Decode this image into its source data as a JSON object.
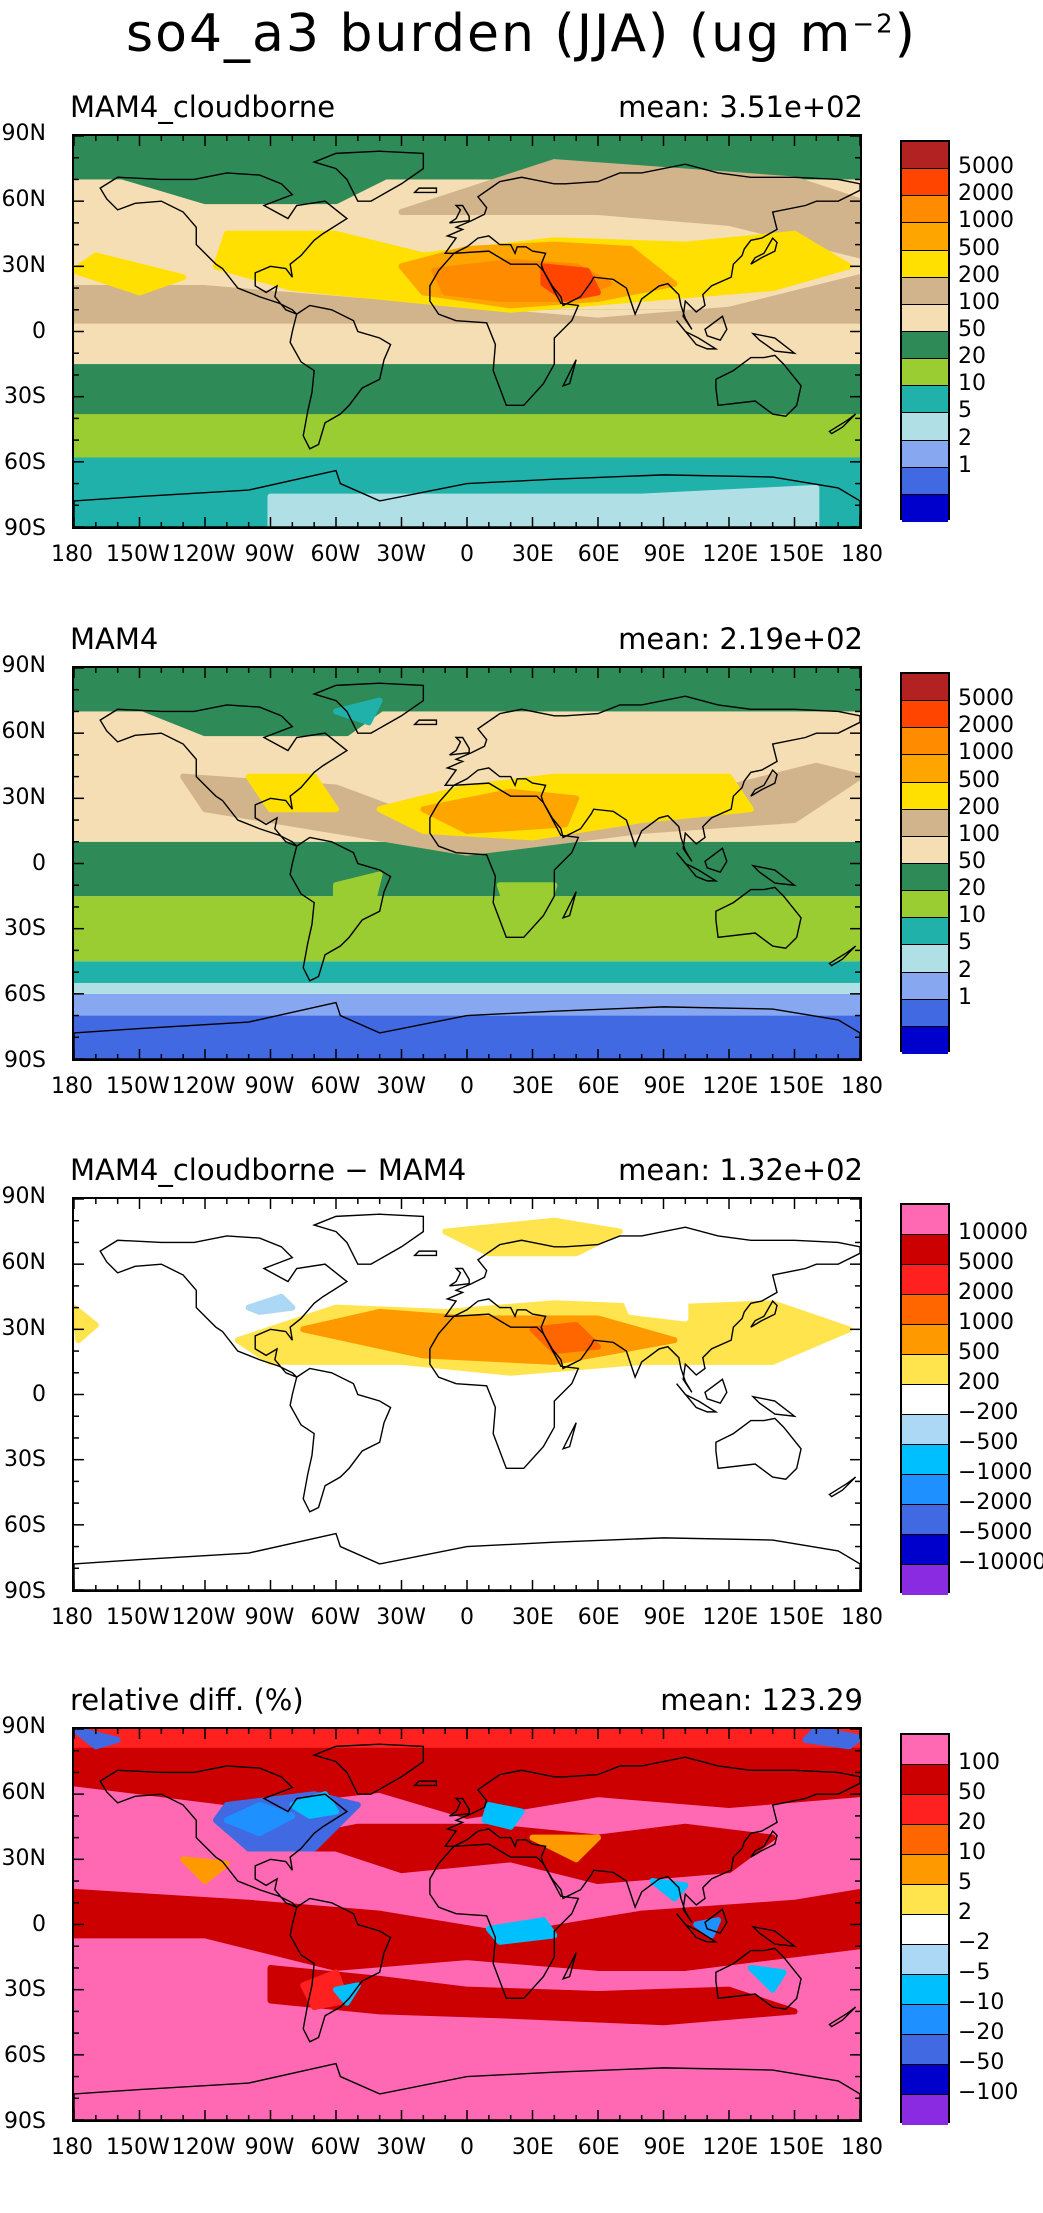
{
  "title": {
    "text": "so4_a3 burden (JJA) (ug m",
    "exp": "−2",
    "close": ")"
  },
  "axes": {
    "lat_labels": [
      "90N",
      "60N",
      "30N",
      "0",
      "30S",
      "60S",
      "90S"
    ],
    "lon_labels": [
      "180",
      "150W",
      "120W",
      "90W",
      "60W",
      "30W",
      "0",
      "30E",
      "60E",
      "90E",
      "120E",
      "150E",
      "180"
    ]
  },
  "panels": [
    {
      "name": "MAM4_cloudborne",
      "mean": "mean: 3.51e+02",
      "colorbar": {
        "labels": [
          "5000",
          "2000",
          "1000",
          "500",
          "200",
          "100",
          "50",
          "20",
          "10",
          "5",
          "2",
          "1"
        ],
        "colors": [
          "#b22222",
          "#ff4500",
          "#ff8c00",
          "#ffa500",
          "#ffe000",
          "#d2b48c",
          "#f5deb3",
          "#2e8b57",
          "#9acd32",
          "#20b2aa",
          "#b0e0e6",
          "#87a8f0",
          "#4169e1",
          "#0000cd"
        ]
      },
      "field": "p1"
    },
    {
      "name": "MAM4",
      "mean": "mean: 2.19e+02",
      "colorbar": {
        "labels": [
          "5000",
          "2000",
          "1000",
          "500",
          "200",
          "100",
          "50",
          "20",
          "10",
          "5",
          "2",
          "1"
        ],
        "colors": [
          "#b22222",
          "#ff4500",
          "#ff8c00",
          "#ffa500",
          "#ffe000",
          "#d2b48c",
          "#f5deb3",
          "#2e8b57",
          "#9acd32",
          "#20b2aa",
          "#b0e0e6",
          "#87a8f0",
          "#4169e1",
          "#0000cd"
        ]
      },
      "field": "p2"
    },
    {
      "name": "MAM4_cloudborne − MAM4",
      "mean": "mean: 1.32e+02",
      "colorbar": {
        "labels": [
          "10000",
          "5000",
          "2000",
          "1000",
          "500",
          "200",
          "−200",
          "−500",
          "−1000",
          "−2000",
          "−5000",
          "−10000"
        ],
        "colors": [
          "#ff69b4",
          "#cc0000",
          "#ff2020",
          "#ff6600",
          "#ff9900",
          "#ffe44d",
          "#ffffff",
          "#add8f5",
          "#00bfff",
          "#1e90ff",
          "#4169e1",
          "#0000cd",
          "#8a2be2"
        ]
      },
      "field": "p3"
    },
    {
      "name": "relative diff. (%)",
      "mean": "mean: 123.29",
      "colorbar": {
        "labels": [
          "100",
          "50",
          "20",
          "10",
          "5",
          "2",
          "−2",
          "−5",
          "−10",
          "−20",
          "−50",
          "−100"
        ],
        "colors": [
          "#ff69b4",
          "#cc0000",
          "#ff2020",
          "#ff6600",
          "#ff9900",
          "#ffe44d",
          "#ffffff",
          "#add8f5",
          "#00bfff",
          "#1e90ff",
          "#4169e1",
          "#0000cd",
          "#8a2be2"
        ]
      },
      "field": "p4"
    }
  ]
}
